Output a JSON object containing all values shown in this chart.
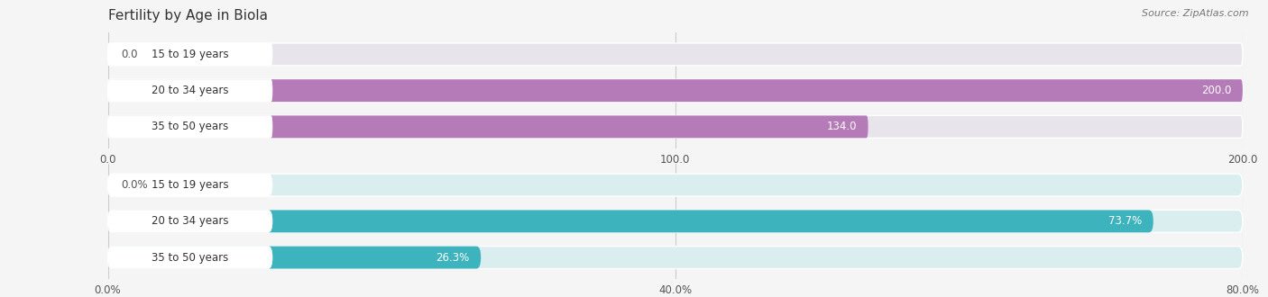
{
  "title": "Fertility by Age in Biola",
  "source": "Source: ZipAtlas.com",
  "top_chart": {
    "categories": [
      "15 to 19 years",
      "20 to 34 years",
      "35 to 50 years"
    ],
    "values": [
      0.0,
      200.0,
      134.0
    ],
    "xlim": [
      0,
      200
    ],
    "xticks": [
      0.0,
      100.0,
      200.0
    ],
    "xtick_labels": [
      "0.0",
      "100.0",
      "200.0"
    ],
    "bar_color": "#b57ab8",
    "bar_bg_color": "#e8e4ec",
    "label_bg_color": "#ffffff"
  },
  "bottom_chart": {
    "categories": [
      "15 to 19 years",
      "20 to 34 years",
      "35 to 50 years"
    ],
    "values": [
      0.0,
      73.7,
      26.3
    ],
    "xlim": [
      0,
      80
    ],
    "xticks": [
      0.0,
      40.0,
      80.0
    ],
    "xtick_labels": [
      "0.0%",
      "40.0%",
      "80.0%"
    ],
    "bar_color": "#3db3be",
    "bar_bg_color": "#daeef0",
    "label_bg_color": "#ffffff"
  },
  "fig_width": 14.06,
  "fig_height": 3.3,
  "dpi": 100,
  "bg_color": "#f5f5f5",
  "title_fontsize": 11,
  "label_fontsize": 8.5,
  "tick_fontsize": 8.5,
  "cat_fontsize": 8.5,
  "source_fontsize": 8
}
